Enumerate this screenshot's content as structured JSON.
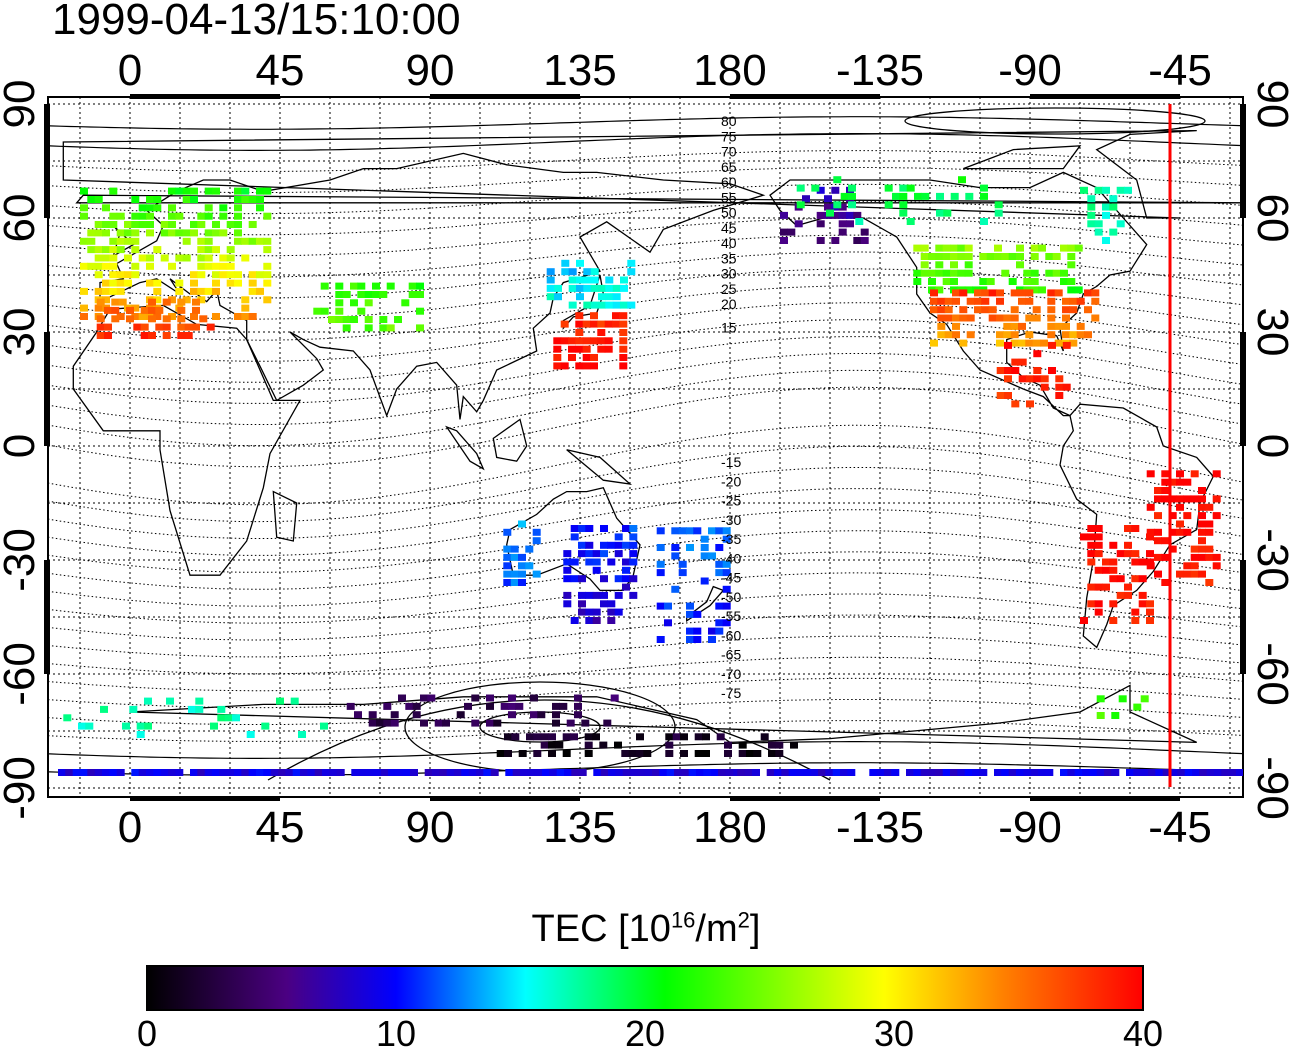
{
  "timestamp": "1999-04-13/15:10:00",
  "map": {
    "lon_ticks_top": [
      "0",
      "45",
      "90",
      "135",
      "180",
      "-135",
      "-90",
      "-45"
    ],
    "lon_ticks_bottom": [
      "0",
      "45",
      "90",
      "135",
      "180",
      "-135",
      "-90",
      "-45"
    ],
    "lat_ticks_left": [
      "90",
      "60",
      "30",
      "0",
      "-30",
      "-60",
      "-90"
    ],
    "lat_ticks_right": [
      "90",
      "60",
      "30",
      "0",
      "-30",
      "-60",
      "-90"
    ],
    "contour_labels_north": [
      "80",
      "75",
      "70",
      "65",
      "60",
      "55",
      "50",
      "45",
      "40",
      "35",
      "30",
      "25",
      "20",
      "15"
    ],
    "contour_labels_south": [
      "-15",
      "-20",
      "-25",
      "-30",
      "-35",
      "-40",
      "-45",
      "-50",
      "-55",
      "-60",
      "-65",
      "-70",
      "-75"
    ],
    "terminator_longitude": -48,
    "terminator_color": "#ff0000"
  },
  "colorbar": {
    "title_prefix": "TEC  [10",
    "title_exp1": "16",
    "title_mid": "/m",
    "title_exp2": "2",
    "title_suffix": "]",
    "ticks": [
      "0",
      "10",
      "20",
      "30",
      "40"
    ],
    "colors": [
      "#000000",
      "#4b0082",
      "#0000ff",
      "#00ffff",
      "#00ff00",
      "#ffff00",
      "#ff8000",
      "#ff0000"
    ]
  }
}
